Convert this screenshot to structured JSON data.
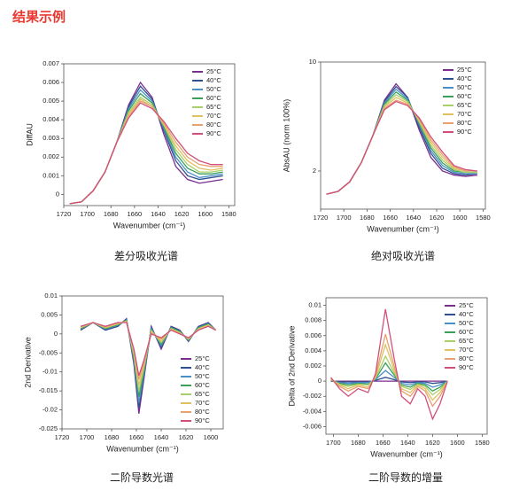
{
  "header": {
    "title": "结果示例"
  },
  "chart_data": [
    {
      "type": "line",
      "caption": "差分吸收光谱",
      "xlabel": "Wavenumber (cm⁻¹)",
      "ylabel": "DiffAU",
      "xlim": [
        1720,
        1575
      ],
      "xticks": [
        1720,
        1700,
        1680,
        1660,
        1640,
        1620,
        1600,
        1580
      ],
      "ylim": [
        -0.0006,
        0.007
      ],
      "yticks": [
        0,
        0.001,
        0.002,
        0.003,
        0.004,
        0.005,
        0.006,
        0.007
      ],
      "legend": "upper right",
      "x": [
        1715,
        1705,
        1695,
        1685,
        1675,
        1665,
        1655,
        1645,
        1635,
        1625,
        1615,
        1605,
        1595,
        1585
      ],
      "series": [
        {
          "name": "25°C",
          "color": "#7b2d8e",
          "values": [
            -0.0005,
            -0.0004,
            0.0002,
            0.0012,
            0.0028,
            0.0048,
            0.006,
            0.0052,
            0.0032,
            0.0015,
            0.0008,
            0.0006,
            0.0007,
            0.0008
          ]
        },
        {
          "name": "40°C",
          "color": "#2f4f8f",
          "values": [
            -0.0005,
            -0.0004,
            0.0002,
            0.0012,
            0.0028,
            0.0047,
            0.0058,
            0.0051,
            0.0034,
            0.0018,
            0.001,
            0.0008,
            0.0009,
            0.001
          ]
        },
        {
          "name": "50°C",
          "color": "#4a90c8",
          "values": [
            -0.0005,
            -0.0004,
            0.0002,
            0.0012,
            0.0028,
            0.0046,
            0.0056,
            0.005,
            0.0035,
            0.002,
            0.0012,
            0.0009,
            0.001,
            0.0011
          ]
        },
        {
          "name": "60°C",
          "color": "#3aa05a",
          "values": [
            -0.0005,
            -0.0004,
            0.0002,
            0.0012,
            0.0028,
            0.0045,
            0.0054,
            0.0049,
            0.0036,
            0.0022,
            0.0014,
            0.0011,
            0.0011,
            0.0012
          ]
        },
        {
          "name": "65°C",
          "color": "#a8cf6a",
          "values": [
            -0.0005,
            -0.0004,
            0.0002,
            0.0012,
            0.0028,
            0.0044,
            0.0052,
            0.0048,
            0.0037,
            0.0024,
            0.0016,
            0.0012,
            0.0012,
            0.0013
          ]
        },
        {
          "name": "70°C",
          "color": "#e0c060",
          "values": [
            -0.0005,
            -0.0004,
            0.0002,
            0.0012,
            0.0028,
            0.0043,
            0.0051,
            0.0047,
            0.0037,
            0.0026,
            0.0018,
            0.0014,
            0.0013,
            0.0014
          ]
        },
        {
          "name": "80°C",
          "color": "#e8a070",
          "values": [
            -0.0005,
            -0.0004,
            0.0002,
            0.0012,
            0.0028,
            0.0042,
            0.005,
            0.0047,
            0.0038,
            0.0028,
            0.002,
            0.0016,
            0.0015,
            0.0015
          ]
        },
        {
          "name": "90°C",
          "color": "#d0507a",
          "values": [
            -0.0005,
            -0.0004,
            0.0002,
            0.0012,
            0.0028,
            0.0041,
            0.0049,
            0.0046,
            0.0039,
            0.003,
            0.0022,
            0.0018,
            0.0016,
            0.0016
          ]
        }
      ]
    },
    {
      "type": "line",
      "caption": "绝对吸收光谱",
      "xlabel": "Wavenumber (cm⁻¹)",
      "ylabel": "AbsAU (norm 100%)",
      "xlim": [
        1720,
        1578
      ],
      "xticks": [
        1720,
        1700,
        1680,
        1660,
        1640,
        1620,
        1600,
        1580
      ],
      "ylim": [
        -0.8,
        10
      ],
      "yticks": [
        2,
        10
      ],
      "legend": "upper right",
      "x": [
        1715,
        1705,
        1695,
        1685,
        1675,
        1665,
        1655,
        1645,
        1635,
        1625,
        1615,
        1605,
        1595,
        1585
      ],
      "series": [
        {
          "name": "25°C",
          "color": "#7b2d8e",
          "values": [
            0.3,
            0.5,
            1.2,
            2.6,
            4.6,
            7.2,
            8.4,
            7.4,
            5.0,
            3.0,
            2.0,
            1.7,
            1.6,
            1.7
          ]
        },
        {
          "name": "40°C",
          "color": "#2f4f8f",
          "values": [
            0.3,
            0.5,
            1.2,
            2.6,
            4.6,
            7.1,
            8.2,
            7.4,
            5.2,
            3.3,
            2.2,
            1.8,
            1.7,
            1.8
          ]
        },
        {
          "name": "50°C",
          "color": "#4a90c8",
          "values": [
            0.3,
            0.5,
            1.2,
            2.6,
            4.6,
            7.0,
            8.0,
            7.3,
            5.4,
            3.5,
            2.4,
            1.9,
            1.8,
            1.8
          ]
        },
        {
          "name": "60°C",
          "color": "#3aa05a",
          "values": [
            0.3,
            0.5,
            1.2,
            2.6,
            4.6,
            6.9,
            7.8,
            7.2,
            5.5,
            3.7,
            2.6,
            2.0,
            1.9,
            1.9
          ]
        },
        {
          "name": "65°C",
          "color": "#a8cf6a",
          "values": [
            0.3,
            0.5,
            1.2,
            2.6,
            4.6,
            6.8,
            7.6,
            7.1,
            5.6,
            3.9,
            2.8,
            2.1,
            1.9,
            1.9
          ]
        },
        {
          "name": "70°C",
          "color": "#e0c060",
          "values": [
            0.3,
            0.5,
            1.2,
            2.6,
            4.6,
            6.7,
            7.4,
            7.0,
            5.7,
            4.1,
            3.0,
            2.2,
            2.0,
            2.0
          ]
        },
        {
          "name": "80°C",
          "color": "#e8a070",
          "values": [
            0.3,
            0.5,
            1.2,
            2.6,
            4.6,
            6.6,
            7.2,
            6.9,
            5.8,
            4.3,
            3.2,
            2.3,
            2.0,
            2.0
          ]
        },
        {
          "name": "90°C",
          "color": "#d0507a",
          "values": [
            0.3,
            0.5,
            1.2,
            2.6,
            4.6,
            6.5,
            7.1,
            6.8,
            5.9,
            4.5,
            3.4,
            2.4,
            2.1,
            2.0
          ]
        }
      ]
    },
    {
      "type": "line",
      "caption": "二阶导数光谱",
      "xlabel": "Wavenumber (cm⁻¹)",
      "ylabel": "2nd Derivative",
      "xlim": [
        1720,
        1590
      ],
      "xticks": [
        1720,
        1700,
        1680,
        1660,
        1640,
        1620,
        1600
      ],
      "ylim": [
        -0.025,
        0.01
      ],
      "yticks": [
        -0.025,
        -0.02,
        -0.015,
        -0.01,
        -0.005,
        0,
        0.005,
        0.01
      ],
      "legend": "lower right",
      "x": [
        1705,
        1695,
        1685,
        1675,
        1668,
        1662,
        1658,
        1654,
        1648,
        1640,
        1632,
        1625,
        1618,
        1610,
        1602,
        1596
      ],
      "series": [
        {
          "name": "25°C",
          "color": "#7b2d8e",
          "values": [
            0.001,
            0.003,
            0.001,
            0.002,
            0.004,
            -0.008,
            -0.021,
            -0.012,
            0.002,
            -0.004,
            0.002,
            0.001,
            -0.002,
            0.002,
            0.003,
            0.001
          ]
        },
        {
          "name": "40°C",
          "color": "#2f4f8f",
          "values": [
            0.001,
            0.003,
            0.001,
            0.002,
            0.004,
            -0.0075,
            -0.0195,
            -0.0113,
            0.0017,
            -0.0036,
            0.0019,
            0.0009,
            -0.0019,
            0.0019,
            0.0029,
            0.001
          ]
        },
        {
          "name": "50°C",
          "color": "#4a90c8",
          "values": [
            0.0013,
            0.003,
            0.0013,
            0.0023,
            0.0037,
            -0.0069,
            -0.018,
            -0.0106,
            0.0014,
            -0.0031,
            0.0017,
            0.0007,
            -0.0017,
            0.0017,
            0.0027,
            0.001
          ]
        },
        {
          "name": "60°C",
          "color": "#3aa05a",
          "values": [
            0.0014,
            0.003,
            0.0014,
            0.0024,
            0.0036,
            -0.0063,
            -0.0165,
            -0.0099,
            0.0011,
            -0.0027,
            0.0016,
            0.0006,
            -0.0016,
            0.0016,
            0.0026,
            0.001
          ]
        },
        {
          "name": "65°C",
          "color": "#a8cf6a",
          "values": [
            0.0016,
            0.003,
            0.0016,
            0.0026,
            0.0034,
            -0.0057,
            -0.015,
            -0.0091,
            0.0009,
            -0.0023,
            0.0014,
            0.0004,
            -0.0014,
            0.0014,
            0.0024,
            0.001
          ]
        },
        {
          "name": "70°C",
          "color": "#e0c060",
          "values": [
            0.0017,
            0.003,
            0.0017,
            0.0027,
            0.0033,
            -0.0051,
            -0.0135,
            -0.0084,
            0.0006,
            -0.0019,
            0.0013,
            0.0003,
            -0.0013,
            0.0013,
            0.0023,
            0.001
          ]
        },
        {
          "name": "80°C",
          "color": "#e8a070",
          "values": [
            0.0019,
            0.003,
            0.0019,
            0.0029,
            0.0031,
            -0.0046,
            -0.012,
            -0.0077,
            0.0003,
            -0.0014,
            0.0011,
            0.0001,
            -0.0011,
            0.0011,
            0.0021,
            0.001
          ]
        },
        {
          "name": "90°C",
          "color": "#d0507a",
          "values": [
            0.002,
            0.003,
            0.002,
            0.003,
            0.003,
            -0.004,
            -0.011,
            -0.007,
            0,
            -0.001,
            0.001,
            0,
            -0.001,
            0.001,
            0.002,
            0.001
          ]
        }
      ]
    },
    {
      "type": "line",
      "caption": "二阶导数的增量",
      "xlabel": "Wavenumber (cm⁻¹)",
      "ylabel": "Delta of 2nd Derivative",
      "xlim": [
        1706,
        1576
      ],
      "xticks": [
        1700,
        1680,
        1660,
        1640,
        1620,
        1600,
        1580
      ],
      "ylim": [
        -0.007,
        0.011
      ],
      "yticks": [
        -0.006,
        -0.004,
        -0.002,
        0,
        0.002,
        0.004,
        0.006,
        0.008,
        0.01
      ],
      "legend": "upper right",
      "x": [
        1702,
        1695,
        1688,
        1680,
        1672,
        1666,
        1658,
        1651,
        1645,
        1638,
        1632,
        1626,
        1620,
        1614,
        1608
      ],
      "series": [
        {
          "name": "25°C",
          "color": "#7b2d8e",
          "values": [
            0,
            0,
            0,
            0,
            0,
            0,
            0,
            0,
            0,
            0,
            0,
            0,
            0,
            0,
            0
          ]
        },
        {
          "name": "40°C",
          "color": "#2f4f8f",
          "values": [
            0,
            -0.0001,
            -0.0001,
            -0.0001,
            -0.0001,
            0.0001,
            0.0005,
            0.0002,
            -0.0001,
            -0.0002,
            -0.0001,
            -0.0001,
            -0.0003,
            -0.0002,
            0
          ]
        },
        {
          "name": "50°C",
          "color": "#4a90c8",
          "values": [
            0.0001,
            -0.0002,
            -0.0003,
            -0.0002,
            -0.0002,
            0.0002,
            0.0014,
            0.0005,
            -0.0003,
            -0.0005,
            -0.0002,
            -0.0003,
            -0.0008,
            -0.0005,
            0
          ]
        },
        {
          "name": "60°C",
          "color": "#3aa05a",
          "values": [
            0.0001,
            -0.0003,
            -0.0005,
            -0.0003,
            -0.0004,
            0.0003,
            0.0024,
            0.0008,
            -0.0005,
            -0.0008,
            -0.0003,
            -0.0005,
            -0.0013,
            -0.0008,
            0
          ]
        },
        {
          "name": "65°C",
          "color": "#a8cf6a",
          "values": [
            0.0002,
            -0.0004,
            -0.0007,
            -0.0004,
            -0.0005,
            0.0004,
            0.0033,
            0.0011,
            -0.0007,
            -0.0011,
            -0.0004,
            -0.0007,
            -0.0018,
            -0.0011,
            0
          ]
        },
        {
          "name": "70°C",
          "color": "#e0c060",
          "values": [
            0.0003,
            -0.0005,
            -0.001,
            -0.0005,
            -0.0008,
            0.0005,
            0.0048,
            0.0015,
            -0.001,
            -0.0015,
            -0.0005,
            -0.001,
            -0.0025,
            -0.0015,
            0
          ]
        },
        {
          "name": "80°C",
          "color": "#e8a070",
          "values": [
            0.0003,
            -0.0007,
            -0.0013,
            -0.0007,
            -0.001,
            0.0007,
            0.0062,
            0.002,
            -0.0013,
            -0.002,
            -0.0007,
            -0.0013,
            -0.0033,
            -0.002,
            0
          ]
        },
        {
          "name": "90°C",
          "color": "#d0507a",
          "values": [
            0.0005,
            -0.001,
            -0.002,
            -0.001,
            -0.0015,
            0.001,
            0.0095,
            0.003,
            -0.002,
            -0.003,
            -0.001,
            -0.002,
            -0.005,
            -0.003,
            0
          ]
        }
      ]
    }
  ]
}
